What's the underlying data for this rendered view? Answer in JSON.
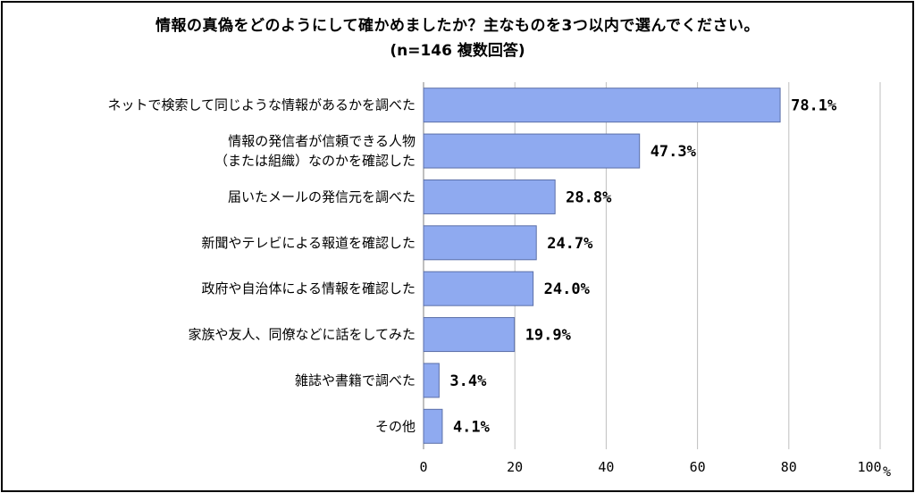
{
  "chart_data": {
    "type": "bar",
    "orientation": "horizontal",
    "title": "情報の真偽をどのようにして確かめましたか？主なものを3つ以内で選んでください。",
    "subtitle": "(n=146 複数回答)",
    "categories": [
      [
        "ネットで検索して同じような情報があるかを調べた"
      ],
      [
        "情報の発信者が信頼できる人物",
        "（または組織）なのかを確認した"
      ],
      [
        "届いたメールの発信元を調べた"
      ],
      [
        "新聞やテレビによる報道を確認した"
      ],
      [
        "政府や自治体による情報を確認した"
      ],
      [
        "家族や友人、同僚などに話をしてみた"
      ],
      [
        "雑誌や書籍で調べた"
      ],
      [
        "その他"
      ]
    ],
    "values": [
      78.1,
      47.3,
      28.8,
      24.7,
      24.0,
      19.9,
      3.4,
      4.1
    ],
    "value_labels": [
      "78.1%",
      "47.3%",
      "28.8%",
      "24.7%",
      "24.0%",
      "19.9%",
      "3.4%",
      "4.1%"
    ],
    "xlim": [
      0,
      100
    ],
    "ticks": [
      0,
      20,
      40,
      60,
      80,
      100
    ],
    "tick_labels": [
      "0",
      "20",
      "40",
      "60",
      "80",
      "100"
    ],
    "unit": "%",
    "grid": true,
    "bar_color": "#8faaf0",
    "bar_border": "#5b6fa8",
    "grid_color": "#bfbfbf"
  }
}
